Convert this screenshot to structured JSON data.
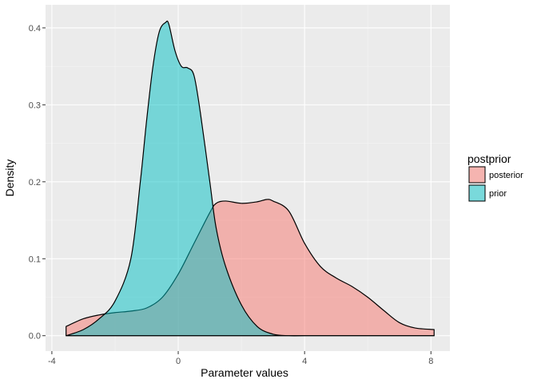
{
  "chart_data": {
    "type": "area",
    "title": "",
    "xlabel": "Parameter values",
    "ylabel": "Density",
    "xlim": [
      -4.2,
      8.6
    ],
    "ylim": [
      -0.02,
      0.43
    ],
    "xticks": [
      -4,
      0,
      4,
      8
    ],
    "xtick_labels": [
      "-4",
      "0",
      "4",
      "8"
    ],
    "yticks": [
      0.0,
      0.1,
      0.2,
      0.3,
      0.4
    ],
    "ytick_labels": [
      "0.0",
      "0.1",
      "0.2",
      "0.3",
      "0.4"
    ],
    "grid": true,
    "legend": {
      "title": "postprior",
      "position": "right"
    },
    "series": [
      {
        "name": "posterior",
        "color": "#F8766D",
        "x": [
          -3.55,
          -3.0,
          -2.5,
          -2.0,
          -1.5,
          -1.0,
          -0.5,
          0.0,
          0.5,
          1.0,
          1.2,
          1.5,
          2.0,
          2.5,
          2.8,
          3.0,
          3.5,
          4.0,
          4.5,
          5.0,
          5.5,
          6.0,
          6.5,
          7.0,
          7.5,
          8.1
        ],
        "y": [
          0.012,
          0.022,
          0.027,
          0.03,
          0.032,
          0.036,
          0.05,
          0.08,
          0.12,
          0.16,
          0.172,
          0.175,
          0.172,
          0.174,
          0.177,
          0.175,
          0.162,
          0.12,
          0.09,
          0.075,
          0.064,
          0.05,
          0.033,
          0.017,
          0.01,
          0.008
        ]
      },
      {
        "name": "prior",
        "color": "#00BFC4",
        "x": [
          -3.55,
          -3.0,
          -2.5,
          -2.0,
          -1.5,
          -1.2,
          -1.0,
          -0.8,
          -0.6,
          -0.4,
          -0.3,
          -0.1,
          0.1,
          0.3,
          0.5,
          0.7,
          1.0,
          1.2,
          1.5,
          2.0,
          2.5,
          3.0,
          3.5,
          4.0,
          4.5,
          5.0,
          5.5,
          6.0,
          6.5,
          7.0,
          7.5,
          8.1
        ],
        "y": [
          0.0,
          0.008,
          0.022,
          0.045,
          0.1,
          0.2,
          0.28,
          0.35,
          0.395,
          0.407,
          0.405,
          0.37,
          0.35,
          0.348,
          0.338,
          0.29,
          0.2,
          0.14,
          0.09,
          0.04,
          0.012,
          0.002,
          0.0,
          0.0,
          0.0,
          0.0,
          0.0,
          0.0,
          0.0,
          0.0,
          0.0,
          0.0
        ]
      }
    ]
  }
}
